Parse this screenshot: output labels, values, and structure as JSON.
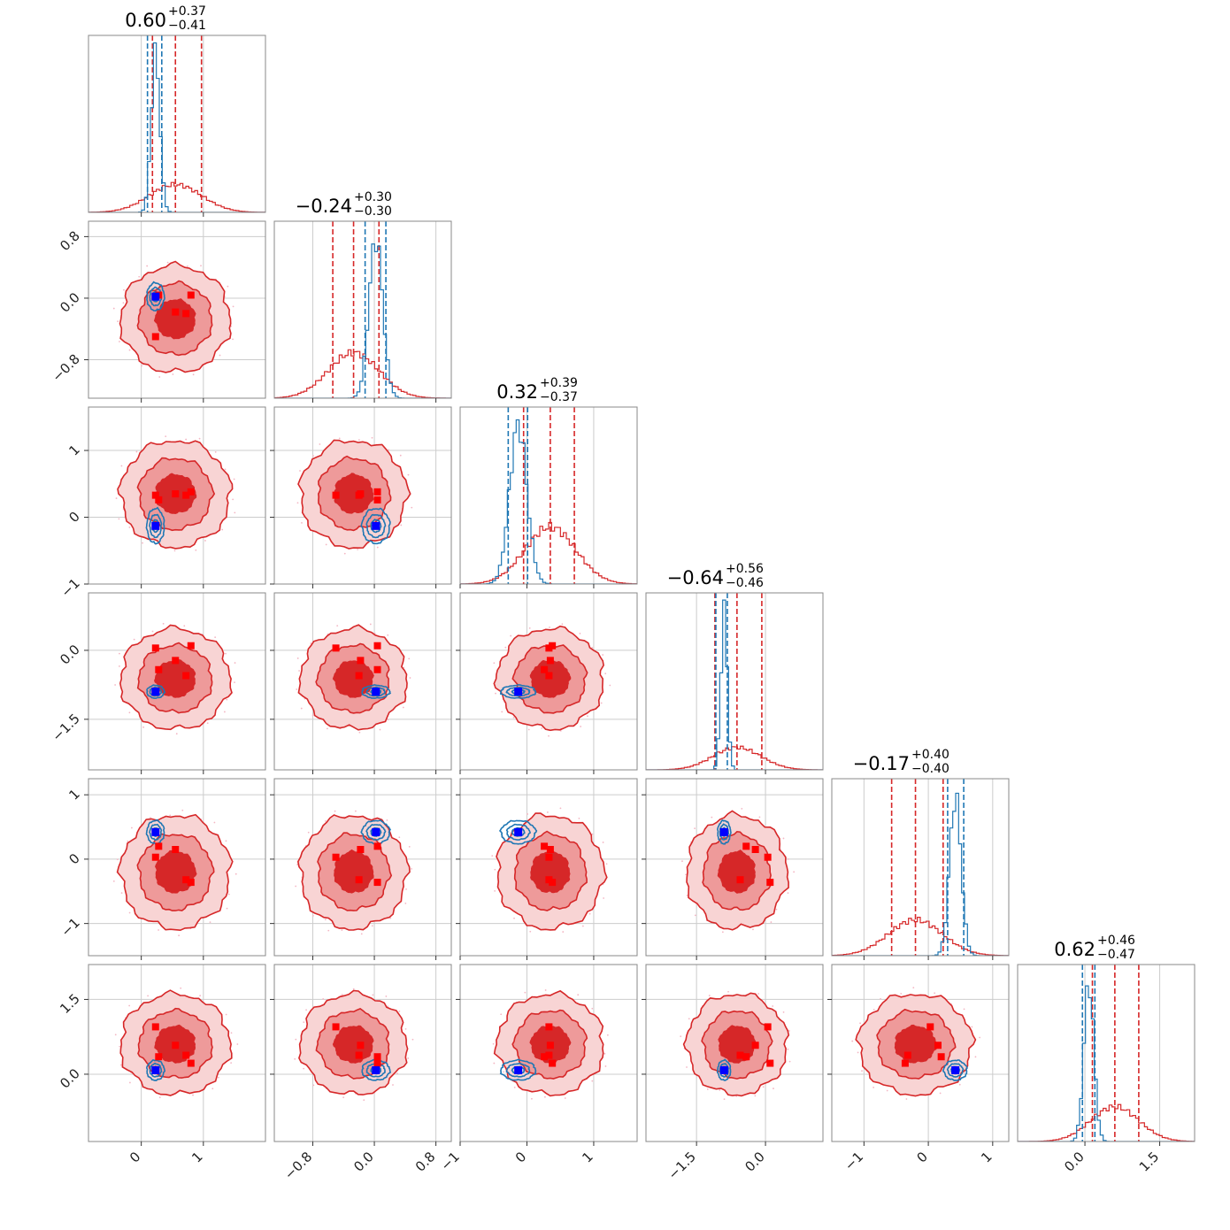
{
  "chart_data": {
    "type": "corner",
    "n_params": 6,
    "parameter_titles": [
      {
        "median": "0.60",
        "plus": "+0.37",
        "minus": "−0.41"
      },
      {
        "median": "−0.24",
        "plus": "+0.30",
        "minus": "−0.30"
      },
      {
        "median": "0.32",
        "plus": "+0.39",
        "minus": "−0.37"
      },
      {
        "median": "−0.64",
        "plus": "+0.56",
        "minus": "−0.46"
      },
      {
        "median": "−0.17",
        "plus": "+0.40",
        "minus": "−0.40"
      },
      {
        "median": "0.62",
        "plus": "+0.46",
        "minus": "−0.47"
      }
    ],
    "axis_ranges": [
      [
        -0.85,
        2.0
      ],
      [
        -1.3,
        1.0
      ],
      [
        -1.0,
        1.65
      ],
      [
        -2.6,
        1.25
      ],
      [
        -1.5,
        1.25
      ],
      [
        -1.35,
        2.2
      ]
    ],
    "ticks": [
      {
        "values": [
          0,
          1
        ],
        "labels": [
          "0",
          "1"
        ]
      },
      {
        "values": [
          -0.8,
          0.0,
          0.8
        ],
        "labels": [
          "−0.8",
          "0.0",
          "0.8"
        ]
      },
      {
        "values": [
          -1,
          0,
          1
        ],
        "labels": [
          "−1",
          "0",
          "1"
        ]
      },
      {
        "values": [
          -1.5,
          0.0
        ],
        "labels": [
          "−1.5",
          "0.0"
        ]
      },
      {
        "values": [
          -1,
          0,
          1
        ],
        "labels": [
          "−1",
          "0",
          "1"
        ]
      },
      {
        "values": [
          0.0,
          1.5
        ],
        "labels": [
          "0.0",
          "1.5"
        ]
      }
    ],
    "series": [
      {
        "color": "#d62728",
        "means": [
          0.55,
          -0.27,
          0.35,
          -0.62,
          -0.2,
          0.6
        ],
        "sds": [
          0.42,
          0.33,
          0.38,
          0.52,
          0.42,
          0.48
        ],
        "quantile_lines": [
          [
            0.18,
            0.97
          ],
          [
            -0.54,
            0.06
          ],
          [
            -0.05,
            0.71
          ],
          [
            -1.1,
            -0.08
          ],
          [
            -0.57,
            0.23
          ],
          [
            0.15,
            1.08
          ]
        ]
      },
      {
        "color": "#1f77b4",
        "means": [
          0.23,
          0.02,
          -0.13,
          -0.9,
          0.42,
          0.08
        ],
        "sds": [
          0.07,
          0.09,
          0.13,
          0.07,
          0.09,
          0.1
        ],
        "quantile_lines": [
          [
            0.1,
            0.33
          ],
          [
            -0.12,
            0.15
          ],
          [
            -0.28,
            0.01
          ],
          [
            -1.08,
            -0.83
          ],
          [
            0.3,
            0.55
          ],
          [
            -0.05,
            0.2
          ]
        ]
      }
    ],
    "truth_markers": {
      "blue_marker": [
        0.23,
        0.02,
        -0.13,
        -0.9,
        0.42,
        0.08
      ],
      "red_markers": [
        [
          0.23,
          -0.5,
          0.33,
          0.05,
          0.03,
          0.95
        ],
        [
          0.55,
          -0.18,
          0.35,
          -0.22,
          0.15,
          0.58
        ],
        [
          0.72,
          -0.2,
          0.33,
          -0.55,
          -0.32,
          0.38
        ],
        [
          0.8,
          0.04,
          0.38,
          0.1,
          -0.36,
          0.22
        ],
        [
          0.28,
          0.04,
          0.26,
          -0.42,
          0.2,
          0.35
        ]
      ]
    },
    "grid": true
  }
}
